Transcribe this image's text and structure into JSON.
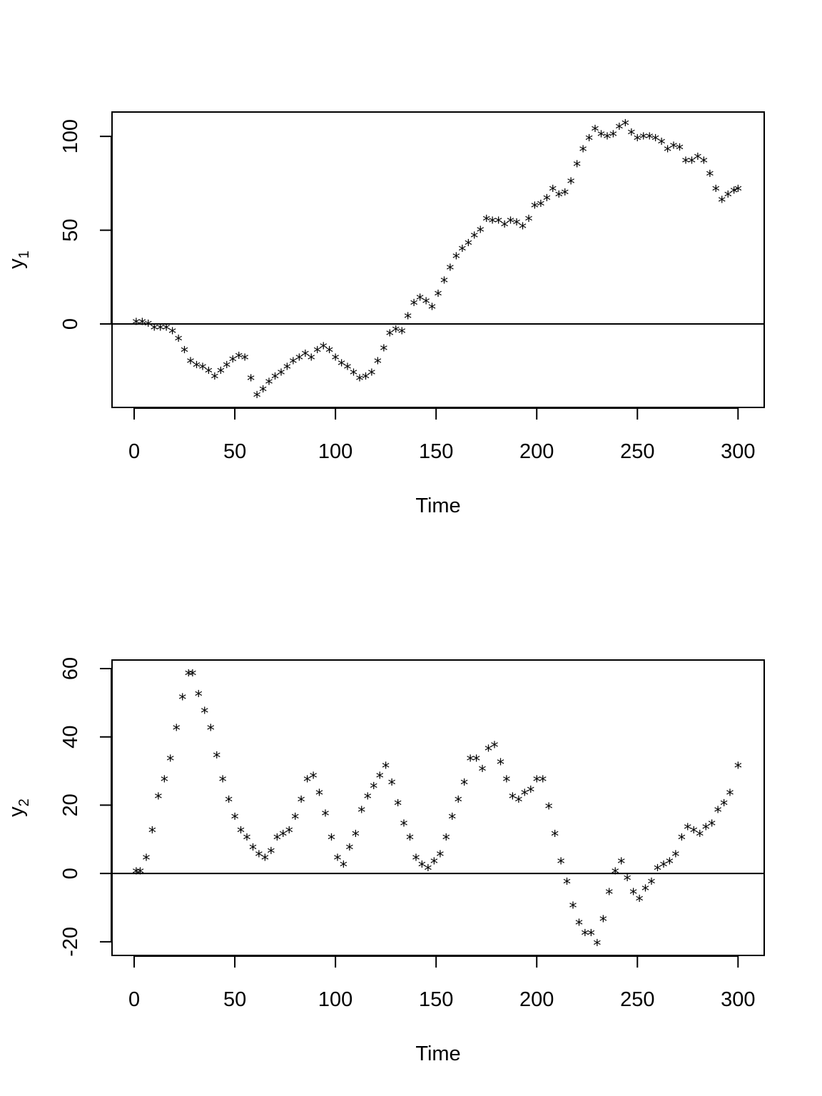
{
  "chart_data": [
    {
      "type": "scatter",
      "marker": "*",
      "xlabel": "Time",
      "ylabel": "y",
      "ylabel_subscript": "1",
      "xlim": [
        -11,
        313
      ],
      "ylim": [
        -44.5,
        113
      ],
      "xticks": [
        0,
        50,
        100,
        150,
        200,
        250,
        300
      ],
      "yticks": [
        0,
        50,
        100
      ],
      "reference_line_y": 0,
      "grid": false,
      "series": [
        {
          "x": [
            1,
            4,
            7,
            10,
            13,
            16,
            19,
            22,
            25,
            28,
            31,
            34,
            37,
            40,
            43,
            46,
            49,
            52,
            55,
            58,
            61,
            64,
            67,
            70,
            73,
            76,
            79,
            82,
            85,
            88,
            91,
            94,
            97,
            100,
            103,
            106,
            109,
            112,
            115,
            118,
            121,
            124,
            127,
            130,
            133,
            136,
            139,
            142,
            145,
            148,
            151,
            154,
            157,
            160,
            163,
            166,
            169,
            172,
            175,
            178,
            181,
            184,
            187,
            190,
            193,
            196,
            199,
            202,
            205,
            208,
            211,
            214,
            217,
            220,
            223,
            226,
            229,
            232,
            235,
            238,
            241,
            244,
            247,
            250,
            253,
            256,
            259,
            262,
            265,
            268,
            271,
            274,
            277,
            280,
            283,
            286,
            289,
            292,
            295,
            298,
            300
          ],
          "values": [
            0,
            0,
            -1,
            -3,
            -3,
            -3,
            -5,
            -9,
            -15,
            -21,
            -23,
            -24,
            -26,
            -29,
            -26,
            -23,
            -20,
            -18,
            -19,
            -30,
            -39,
            -36,
            -32,
            -29,
            -27,
            -24,
            -21,
            -19,
            -17,
            -19,
            -15,
            -13,
            -15,
            -19,
            -22,
            -24,
            -27,
            -30,
            -29,
            -27,
            -21,
            -14,
            -6,
            -4,
            -5,
            3,
            10,
            13,
            11,
            8,
            15,
            22,
            29,
            35,
            39,
            42,
            46,
            49,
            55,
            54,
            54,
            52,
            54,
            53,
            51,
            55,
            62,
            63,
            66,
            71,
            68,
            69,
            75,
            84,
            92,
            98,
            103,
            100,
            99,
            100,
            104,
            106,
            101,
            98,
            99,
            99,
            98,
            96,
            92,
            94,
            93,
            86,
            86,
            88,
            86,
            79,
            71,
            65,
            68,
            70,
            71
          ]
        }
      ]
    },
    {
      "type": "scatter",
      "marker": "*",
      "xlabel": "Time",
      "ylabel": "y",
      "ylabel_subscript": "2",
      "xlim": [
        -11,
        313
      ],
      "ylim": [
        -24,
        62.5
      ],
      "xticks": [
        0,
        50,
        100,
        150,
        200,
        250,
        300
      ],
      "yticks": [
        -20,
        0,
        20,
        40,
        60
      ],
      "reference_line_y": 0,
      "grid": false,
      "series": [
        {
          "x": [
            1,
            3,
            6,
            9,
            12,
            15,
            18,
            21,
            24,
            27,
            29,
            32,
            35,
            38,
            41,
            44,
            47,
            50,
            53,
            56,
            59,
            62,
            65,
            68,
            71,
            74,
            77,
            80,
            83,
            86,
            89,
            92,
            95,
            98,
            101,
            104,
            107,
            110,
            113,
            116,
            119,
            122,
            125,
            128,
            131,
            134,
            137,
            140,
            143,
            146,
            149,
            152,
            155,
            158,
            161,
            164,
            167,
            170,
            173,
            176,
            179,
            182,
            185,
            188,
            191,
            194,
            197,
            200,
            203,
            206,
            209,
            212,
            215,
            218,
            221,
            224,
            227,
            230,
            233,
            236,
            239,
            242,
            245,
            248,
            251,
            254,
            257,
            260,
            263,
            266,
            269,
            272,
            275,
            278,
            281,
            284,
            287,
            290,
            293,
            296,
            300
          ],
          "values": [
            0,
            0,
            4,
            12,
            22,
            27,
            33,
            42,
            51,
            58,
            58,
            52,
            47,
            42,
            34,
            27,
            21,
            16,
            12,
            10,
            7,
            5,
            4,
            6,
            10,
            11,
            12,
            16,
            21,
            27,
            28,
            23,
            17,
            10,
            4,
            2,
            7,
            11,
            18,
            22,
            25,
            28,
            31,
            26,
            20,
            14,
            10,
            4,
            2,
            1,
            3,
            5,
            10,
            16,
            21,
            26,
            33,
            33,
            30,
            36,
            37,
            32,
            27,
            22,
            21,
            23,
            24,
            27,
            27,
            19,
            11,
            3,
            -3,
            -10,
            -15,
            -18,
            -18,
            -21,
            -14,
            -6,
            0,
            3,
            -2,
            -6,
            -8,
            -5,
            -3,
            1,
            2,
            3,
            5,
            10,
            13,
            12,
            11,
            13,
            14,
            18,
            20,
            23,
            31
          ]
        }
      ]
    }
  ]
}
